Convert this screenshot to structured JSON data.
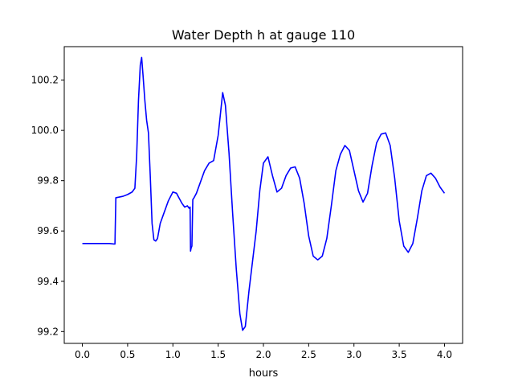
{
  "chart_data": {
    "type": "line",
    "title": "Water Depth h at gauge 110",
    "xlabel": "hours",
    "ylabel": "",
    "xlim": [
      -0.2,
      4.2
    ],
    "ylim": [
      99.153,
      100.333
    ],
    "grid": false,
    "xticks": [
      0.0,
      0.5,
      1.0,
      1.5,
      2.0,
      2.5,
      3.0,
      3.5,
      4.0
    ],
    "xtick_labels": [
      "0.0",
      "0.5",
      "1.0",
      "1.5",
      "2.0",
      "2.5",
      "3.0",
      "3.5",
      "4.0"
    ],
    "yticks": [
      99.2,
      99.4,
      99.6,
      99.8,
      100.0,
      100.2
    ],
    "ytick_labels": [
      "99.2",
      "99.4",
      "99.6",
      "99.8",
      "100.0",
      "100.2"
    ],
    "colors": {
      "line": "#0000ff",
      "axes": "#000000",
      "background": "#ffffff"
    },
    "series": [
      {
        "x": [
          0.0,
          0.1,
          0.2,
          0.3,
          0.35,
          0.36,
          0.37,
          0.45,
          0.5,
          0.55,
          0.58,
          0.6,
          0.62,
          0.64,
          0.655,
          0.67,
          0.69,
          0.71,
          0.73,
          0.75,
          0.77,
          0.79,
          0.81,
          0.83,
          0.86,
          0.9,
          0.95,
          1.0,
          1.04,
          1.07,
          1.1,
          1.13,
          1.16,
          1.18,
          1.19,
          1.195,
          1.2,
          1.205,
          1.21,
          1.22,
          1.23,
          1.26,
          1.3,
          1.35,
          1.4,
          1.45,
          1.5,
          1.55,
          1.58,
          1.62,
          1.66,
          1.7,
          1.74,
          1.77,
          1.8,
          1.84,
          1.88,
          1.92,
          1.96,
          2.0,
          2.05,
          2.1,
          2.15,
          2.2,
          2.25,
          2.3,
          2.35,
          2.4,
          2.45,
          2.5,
          2.55,
          2.6,
          2.65,
          2.7,
          2.75,
          2.8,
          2.85,
          2.9,
          2.95,
          3.0,
          3.05,
          3.1,
          3.15,
          3.2,
          3.25,
          3.3,
          3.35,
          3.4,
          3.45,
          3.5,
          3.55,
          3.6,
          3.65,
          3.7,
          3.75,
          3.8,
          3.85,
          3.9,
          3.95,
          4.0
        ],
        "y": [
          99.55,
          99.55,
          99.55,
          99.55,
          99.548,
          99.548,
          99.732,
          99.738,
          99.745,
          99.755,
          99.77,
          99.9,
          100.12,
          100.26,
          100.29,
          100.22,
          100.12,
          100.04,
          99.99,
          99.82,
          99.63,
          99.565,
          99.56,
          99.57,
          99.63,
          99.67,
          99.72,
          99.755,
          99.75,
          99.73,
          99.71,
          99.695,
          99.7,
          99.69,
          99.695,
          99.52,
          99.53,
          99.535,
          99.54,
          99.725,
          99.73,
          99.75,
          99.79,
          99.84,
          99.87,
          99.88,
          99.98,
          100.15,
          100.1,
          99.91,
          99.67,
          99.45,
          99.27,
          99.205,
          99.22,
          99.36,
          99.48,
          99.6,
          99.76,
          99.87,
          99.895,
          99.82,
          99.755,
          99.77,
          99.82,
          99.85,
          99.855,
          99.81,
          99.71,
          99.58,
          99.5,
          99.485,
          99.5,
          99.57,
          99.7,
          99.84,
          99.905,
          99.94,
          99.92,
          99.84,
          99.76,
          99.715,
          99.75,
          99.86,
          99.95,
          99.985,
          99.99,
          99.94,
          99.81,
          99.64,
          99.54,
          99.515,
          99.55,
          99.65,
          99.76,
          99.82,
          99.83,
          99.81,
          99.775,
          99.75
        ]
      }
    ]
  }
}
